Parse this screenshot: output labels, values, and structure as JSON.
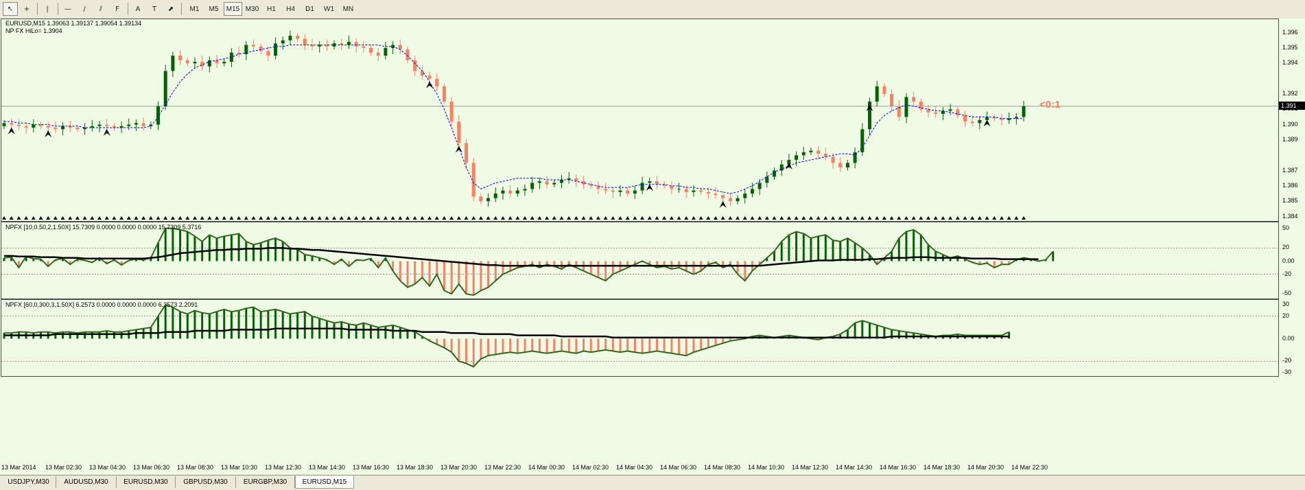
{
  "toolbar": {
    "tools": [
      {
        "name": "cursor-tool",
        "glyph": "↖"
      },
      {
        "name": "crosshair-tool",
        "glyph": "+"
      },
      {
        "name": "vertical-line-tool",
        "glyph": "|"
      },
      {
        "name": "horizontal-line-tool",
        "glyph": "—"
      },
      {
        "name": "trendline-tool",
        "glyph": "/"
      },
      {
        "name": "equidistant-channel-tool",
        "glyph": "⫽"
      },
      {
        "name": "fibonacci-tool",
        "glyph": "F"
      },
      {
        "name": "text-tool",
        "glyph": "A"
      },
      {
        "name": "text-label-tool",
        "glyph": "T"
      },
      {
        "name": "arrows-tool",
        "glyph": "⬈"
      }
    ],
    "timeframes": [
      "M1",
      "M5",
      "M15",
      "M30",
      "H1",
      "H4",
      "D1",
      "W1",
      "MN"
    ],
    "active_timeframe": "M15"
  },
  "main_pane": {
    "symbol_label": "EURUSD,M15  1.39063 1.39137 1.39054 1.39134",
    "indicator_label": "NP FX HiLo= 1.3904",
    "price_ticks": [
      "1.396",
      "1.395",
      "1.394",
      "1.392",
      "1.391",
      "1.390",
      "1.389",
      "1.387",
      "1.386",
      "1.385",
      "1.384"
    ],
    "current_price": "1.391",
    "ratio_text": "<0:1",
    "colors": {
      "bull": "#006400",
      "bear": "#fa8064",
      "hilo": "#0000ff",
      "ratio": "#fa8064"
    }
  },
  "osc1": {
    "label": "NPFX [10,0.50,2,1.50X] 15.7309 0.0000 0.0000 0.0000 15.7309 5.3716",
    "ticks": [
      "50",
      "20",
      "0.00",
      "-20",
      "-50"
    ]
  },
  "osc2": {
    "label": "NPFX [60,0,300,3,1.50X] 6.2573 0.0000 0.0000 0.0000 6.2573 2.2091",
    "ticks": [
      "30",
      "20",
      "0.00",
      "-20",
      "-30"
    ]
  },
  "time_axis": [
    "13 Mar 2014",
    "13 Mar 02:30",
    "13 Mar 04:30",
    "13 Mar 06:30",
    "13 Mar 08:30",
    "13 Mar 10:30",
    "13 Mar 12:30",
    "13 Mar 14:30",
    "13 Mar 16:30",
    "13 Mar 18:30",
    "13 Mar 20:30",
    "13 Mar 22:30",
    "14 Mar 00:30",
    "14 Mar 02:30",
    "14 Mar 04:30",
    "14 Mar 06:30",
    "14 Mar 08:30",
    "14 Mar 10:30",
    "14 Mar 12:30",
    "14 Mar 14:30",
    "14 Mar 16:30",
    "14 Mar 18:30",
    "14 Mar 20:30",
    "14 Mar 22:30"
  ],
  "tabs": [
    "USDJPY,M30",
    "AUDUSD,M30",
    "EURUSD,M30",
    "GBPUSD,M30",
    "EURGBP,M30",
    "EURUSD,M15"
  ],
  "active_tab": "EURUSD,M15",
  "chart_data": {
    "type": "candlestick",
    "title": "EURUSD,M15",
    "price_series": [
      1.3901,
      1.39,
      1.3899,
      1.3898,
      1.39,
      1.3899,
      1.3898,
      1.3897,
      1.3899,
      1.3898,
      1.3897,
      1.3898,
      1.3899,
      1.39,
      1.3899,
      1.3898,
      1.3899,
      1.39,
      1.3901,
      1.3899,
      1.39,
      1.3912,
      1.3935,
      1.3945,
      1.3942,
      1.394,
      1.3941,
      1.3938,
      1.3942,
      1.394,
      1.3941,
      1.3947,
      1.3946,
      1.3952,
      1.3951,
      1.3948,
      1.3945,
      1.3953,
      1.3955,
      1.3958,
      1.3956,
      1.3952,
      1.3951,
      1.3952,
      1.3951,
      1.3953,
      1.3952,
      1.3954,
      1.3951,
      1.395,
      1.3947,
      1.3945,
      1.395,
      1.3952,
      1.3949,
      1.3942,
      1.3935,
      1.3932,
      1.393,
      1.3925,
      1.3915,
      1.3902,
      1.3888,
      1.3875,
      1.3853,
      1.385,
      1.3852,
      1.3855,
      1.3857,
      1.3855,
      1.3857,
      1.3858,
      1.3862,
      1.3863,
      1.3861,
      1.3862,
      1.3864,
      1.3865,
      1.3863,
      1.3861,
      1.386,
      1.3858,
      1.3857,
      1.3856,
      1.3857,
      1.3855,
      1.3857,
      1.3862,
      1.3863,
      1.3861,
      1.386,
      1.3858,
      1.3858,
      1.3856,
      1.3857,
      1.3856,
      1.3855,
      1.3854,
      1.3852,
      1.385,
      1.3852,
      1.3855,
      1.3858,
      1.3862,
      1.3866,
      1.387,
      1.3874,
      1.3877,
      1.388,
      1.3882,
      1.3883,
      1.3881,
      1.3879,
      1.3875,
      1.3872,
      1.3875,
      1.3882,
      1.3897,
      1.3915,
      1.3925,
      1.392,
      1.3912,
      1.3905,
      1.3918,
      1.3915,
      1.391,
      1.3908,
      1.3907,
      1.3909,
      1.391,
      1.3906,
      1.3902,
      1.3901,
      1.3903,
      1.3905,
      1.3904,
      1.3903,
      1.3904,
      1.3905,
      1.3912
    ],
    "hilo_series": [
      1.3902,
      1.3902,
      1.3901,
      1.3901,
      1.39,
      1.39,
      1.39,
      1.3899,
      1.3899,
      1.3899,
      1.3899,
      1.3898,
      1.3898,
      1.3898,
      1.3898,
      1.3898,
      1.3898,
      1.3898,
      1.3898,
      1.3898,
      1.3899,
      1.3905,
      1.3913,
      1.3921,
      1.3928,
      1.3933,
      1.3937,
      1.3939,
      1.3941,
      1.3942,
      1.3943,
      1.3944,
      1.3946,
      1.3947,
      1.3948,
      1.3949,
      1.395,
      1.3951,
      1.3951,
      1.3952,
      1.3952,
      1.3952,
      1.3952,
      1.3952,
      1.3952,
      1.3952,
      1.3952,
      1.3952,
      1.3952,
      1.3952,
      1.3952,
      1.3952,
      1.3951,
      1.3951,
      1.3949,
      1.3945,
      1.394,
      1.3935,
      1.3928,
      1.392,
      1.391,
      1.3898,
      1.3885,
      1.3872,
      1.3862,
      1.3858,
      1.386,
      1.3862,
      1.3863,
      1.3864,
      1.3865,
      1.3865,
      1.3865,
      1.3865,
      1.3864,
      1.3864,
      1.3864,
      1.3864,
      1.3863,
      1.3862,
      1.3861,
      1.386,
      1.3859,
      1.3859,
      1.3859,
      1.3859,
      1.386,
      1.3861,
      1.3861,
      1.3861,
      1.3861,
      1.386,
      1.386,
      1.3859,
      1.3859,
      1.3858,
      1.3858,
      1.3857,
      1.3856,
      1.3855,
      1.3856,
      1.3858,
      1.386,
      1.3863,
      1.3866,
      1.3869,
      1.3871,
      1.3873,
      1.3875,
      1.3876,
      1.3877,
      1.3878,
      1.3879,
      1.388,
      1.3881,
      1.3881,
      1.388,
      1.3885,
      1.3893,
      1.3901,
      1.3906,
      1.3909,
      1.3911,
      1.3913,
      1.3912,
      1.3911,
      1.391,
      1.3909,
      1.3909,
      1.3908,
      1.3907,
      1.3906,
      1.3905,
      1.3905,
      1.3905,
      1.3905,
      1.3904,
      1.3904,
      1.3904,
      1.3904
    ],
    "osc1_series": [
      5,
      6,
      -10,
      7,
      4,
      3,
      -8,
      2,
      4,
      -5,
      3,
      1,
      -2,
      5,
      -4,
      2,
      -6,
      1,
      3,
      2,
      5,
      28,
      50,
      50,
      48,
      45,
      38,
      30,
      40,
      35,
      38,
      40,
      42,
      30,
      25,
      28,
      32,
      35,
      30,
      20,
      18,
      10,
      8,
      5,
      2,
      -5,
      3,
      -8,
      2,
      1,
      4,
      -10,
      5,
      -15,
      -30,
      -40,
      -35,
      -25,
      -38,
      -20,
      -45,
      -50,
      -35,
      -50,
      -52,
      -45,
      -40,
      -30,
      -20,
      -15,
      -10,
      -8,
      -5,
      -10,
      -5,
      -8,
      -12,
      -5,
      -10,
      -15,
      -20,
      -25,
      -30,
      -20,
      -15,
      -10,
      -5,
      0,
      -5,
      -10,
      -8,
      -12,
      -10,
      -15,
      -20,
      -15,
      -5,
      -2,
      -10,
      -5,
      -20,
      -30,
      -15,
      -5,
      5,
      15,
      30,
      40,
      45,
      42,
      35,
      38,
      40,
      32,
      30,
      35,
      28,
      20,
      10,
      -5,
      5,
      15,
      35,
      45,
      48,
      40,
      25,
      15,
      10,
      5,
      8,
      3,
      -2,
      -5,
      -3,
      -10,
      -5,
      -5,
      2,
      5,
      3,
      0,
      2,
      15
    ],
    "osc1_signal": [
      8,
      8,
      7,
      7,
      7,
      6,
      6,
      6,
      5,
      5,
      5,
      4,
      4,
      4,
      4,
      4,
      4,
      4,
      4,
      4,
      5,
      6,
      8,
      10,
      12,
      13,
      14,
      15,
      16,
      17,
      17,
      18,
      18,
      19,
      19,
      19,
      20,
      20,
      20,
      19,
      19,
      18,
      17,
      17,
      16,
      15,
      14,
      13,
      12,
      11,
      10,
      9,
      8,
      7,
      6,
      5,
      4,
      3,
      2,
      1,
      0,
      -1,
      -2,
      -3,
      -4,
      -5,
      -6,
      -6,
      -7,
      -7,
      -7,
      -7,
      -7,
      -7,
      -7,
      -7,
      -7,
      -7,
      -7,
      -7,
      -7,
      -7,
      -7,
      -7,
      -7,
      -7,
      -7,
      -7,
      -7,
      -7,
      -7,
      -7,
      -7,
      -7,
      -7,
      -7,
      -7,
      -7,
      -7,
      -7,
      -7,
      -7,
      -7,
      -7,
      -6,
      -5,
      -4,
      -3,
      -2,
      -1,
      0,
      1,
      1,
      1,
      2,
      2,
      2,
      2,
      3,
      3,
      4,
      5,
      5,
      5,
      6,
      6,
      6,
      5,
      5,
      5,
      5,
      5,
      4,
      4,
      4,
      4,
      3,
      3,
      3,
      3,
      3,
      3
    ],
    "osc2_series": [
      5,
      5,
      6,
      6,
      5,
      6,
      6,
      5,
      6,
      6,
      5,
      6,
      6,
      6,
      7,
      6,
      6,
      7,
      8,
      9,
      10,
      20,
      30,
      28,
      24,
      22,
      25,
      23,
      22,
      24,
      26,
      24,
      25,
      27,
      28,
      24,
      25,
      26,
      24,
      22,
      23,
      24,
      20,
      18,
      16,
      14,
      15,
      13,
      12,
      14,
      12,
      10,
      11,
      12,
      10,
      8,
      6,
      2,
      -2,
      -5,
      -8,
      -12,
      -20,
      -22,
      -25,
      -18,
      -15,
      -14,
      -13,
      -12,
      -13,
      -12,
      -11,
      -12,
      -13,
      -12,
      -11,
      -12,
      -13,
      -11,
      -12,
      -11,
      -10,
      -11,
      -12,
      -11,
      -12,
      -13,
      -12,
      -11,
      -12,
      -13,
      -14,
      -15,
      -12,
      -10,
      -8,
      -6,
      -4,
      -2,
      -1,
      0,
      2,
      3,
      2,
      1,
      2,
      3,
      2,
      1,
      0,
      -1,
      1,
      2,
      4,
      8,
      14,
      16,
      14,
      12,
      10,
      8,
      7,
      6,
      5,
      4,
      3,
      2,
      3,
      3,
      4,
      3,
      3,
      3,
      3,
      3,
      3,
      6
    ],
    "osc2_signal": [
      3,
      3,
      3,
      3,
      3,
      3,
      3,
      4,
      4,
      4,
      4,
      4,
      4,
      4,
      4,
      4,
      4,
      4,
      5,
      5,
      5,
      5,
      6,
      6,
      6,
      6,
      7,
      7,
      7,
      7,
      7,
      8,
      8,
      8,
      8,
      8,
      8,
      9,
      9,
      9,
      9,
      9,
      9,
      9,
      9,
      9,
      9,
      8,
      8,
      8,
      8,
      8,
      8,
      7,
      7,
      7,
      7,
      6,
      6,
      6,
      6,
      5,
      5,
      5,
      5,
      4,
      4,
      4,
      4,
      4,
      3,
      3,
      3,
      3,
      3,
      3,
      2,
      2,
      2,
      2,
      2,
      2,
      2,
      1,
      1,
      1,
      1,
      1,
      1,
      1,
      1,
      1,
      1,
      1,
      1,
      1,
      1,
      1,
      1,
      1,
      1,
      1,
      1,
      1,
      1,
      1,
      1,
      1,
      1,
      1,
      1,
      1,
      1,
      1,
      1,
      1,
      1,
      1,
      1,
      1,
      1,
      2,
      2,
      2,
      2,
      2,
      2,
      2,
      2,
      2,
      2,
      2,
      2,
      2,
      2,
      2,
      2,
      2
    ],
    "osc1_range": [
      -55,
      55
    ],
    "osc2_range": [
      -32,
      32
    ],
    "price_range": [
      1.3838,
      1.3967
    ]
  }
}
